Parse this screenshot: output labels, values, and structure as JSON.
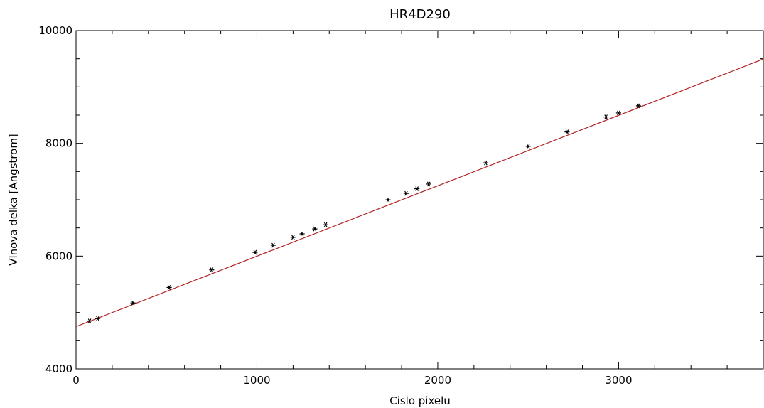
{
  "chart_data": {
    "type": "scatter",
    "title": "HR4D290",
    "xlabel": "Cislo pixelu",
    "ylabel": "Vlnova delka [Angstrom]",
    "xlim": [
      0,
      3800
    ],
    "ylim": [
      4000,
      10000
    ],
    "x_ticks": [
      0,
      1000,
      2000,
      3000
    ],
    "x_tick_labels": [
      "0",
      "1000",
      "2000",
      "3000"
    ],
    "y_ticks": [
      4000,
      6000,
      8000,
      10000
    ],
    "y_tick_labels": [
      "4000",
      "6000",
      "8000",
      "10000"
    ],
    "x_minor_step": 200,
    "y_minor_step": 500,
    "grid": false,
    "legend": "none",
    "points": [
      {
        "x": 75,
        "y": 4848
      },
      {
        "x": 120,
        "y": 4893
      },
      {
        "x": 315,
        "y": 5170
      },
      {
        "x": 515,
        "y": 5444
      },
      {
        "x": 750,
        "y": 5756
      },
      {
        "x": 990,
        "y": 6066
      },
      {
        "x": 1090,
        "y": 6193
      },
      {
        "x": 1200,
        "y": 6334
      },
      {
        "x": 1250,
        "y": 6395
      },
      {
        "x": 1320,
        "y": 6482
      },
      {
        "x": 1380,
        "y": 6556
      },
      {
        "x": 1725,
        "y": 6998
      },
      {
        "x": 1825,
        "y": 7112
      },
      {
        "x": 1885,
        "y": 7194
      },
      {
        "x": 1950,
        "y": 7278
      },
      {
        "x": 2265,
        "y": 7654
      },
      {
        "x": 2500,
        "y": 7947
      },
      {
        "x": 2715,
        "y": 8202
      },
      {
        "x": 2930,
        "y": 8467
      },
      {
        "x": 3000,
        "y": 8539
      },
      {
        "x": 3110,
        "y": 8665
      }
    ],
    "fit_line": {
      "x": [
        0,
        3800
      ],
      "y": [
        4750,
        9495
      ]
    },
    "point_color": "#000000",
    "line_color": "#b22222"
  }
}
